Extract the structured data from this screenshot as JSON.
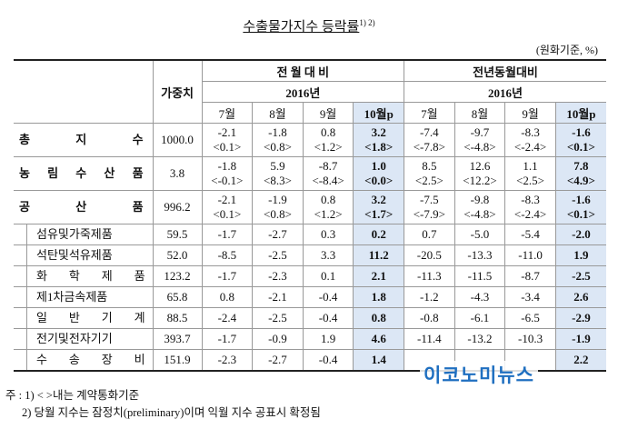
{
  "title": "수출물가지수 등락률",
  "title_note": "1) 2)",
  "unit": "(원화기준, %)",
  "header": {
    "weight": "가중치",
    "groups": [
      "전 월 대 비",
      "전년동월대비"
    ],
    "years": [
      "2016년",
      "2016년"
    ],
    "months": [
      "7월",
      "8월",
      "9월",
      "10월p",
      "7월",
      "8월",
      "9월",
      "10월p"
    ]
  },
  "rows": [
    {
      "label": "총 지 수",
      "weight": "1000.0",
      "values": [
        "-2.1",
        "-1.8",
        "0.8",
        "3.2",
        "-7.4",
        "-9.7",
        "-8.3",
        "-1.6"
      ],
      "contract": [
        "<0.1>",
        "<0.8>",
        "<1.2>",
        "<1.8>",
        "<-7.8>",
        "<-4.8>",
        "<-2.4>",
        "<0.1>"
      ]
    },
    {
      "label": "농 림 수 산 품",
      "weight": "3.8",
      "values": [
        "-1.8",
        "5.9",
        "-8.7",
        "1.0",
        "8.5",
        "12.6",
        "1.1",
        "7.8"
      ],
      "contract": [
        "<-0.1>",
        "<8.3>",
        "<-8.4>",
        "<0.0>",
        "<2.5>",
        "<12.2>",
        "<2.5>",
        "<4.9>"
      ]
    },
    {
      "label": "공 산 품",
      "weight": "996.2",
      "values": [
        "-2.1",
        "-1.9",
        "0.8",
        "3.2",
        "-7.5",
        "-9.8",
        "-8.3",
        "-1.6"
      ],
      "contract": [
        "<0.1>",
        "<0.8>",
        "<1.2>",
        "<1.7>",
        "<-7.9>",
        "<-4.8>",
        "<-2.4>",
        "<0.1>"
      ]
    },
    {
      "label": "섬유및가죽제품",
      "weight": "59.5",
      "values": [
        "-1.7",
        "-2.7",
        "0.3",
        "0.2",
        "0.7",
        "-5.0",
        "-5.4",
        "-2.0"
      ]
    },
    {
      "label": "석탄및석유제품",
      "weight": "52.0",
      "values": [
        "-8.5",
        "-2.5",
        "3.3",
        "11.2",
        "-20.5",
        "-13.3",
        "-11.0",
        "1.9"
      ]
    },
    {
      "label": "화 학 제 품",
      "weight": "123.2",
      "values": [
        "-1.7",
        "-2.3",
        "0.1",
        "2.1",
        "-11.3",
        "-11.5",
        "-8.7",
        "-2.5"
      ]
    },
    {
      "label": "제1차금속제품",
      "weight": "65.8",
      "values": [
        "0.8",
        "-2.1",
        "-0.4",
        "1.8",
        "-1.2",
        "-4.3",
        "-3.4",
        "2.6"
      ]
    },
    {
      "label": "일 반 기 계",
      "weight": "88.5",
      "values": [
        "-2.4",
        "-2.5",
        "-0.4",
        "0.8",
        "-0.8",
        "-6.1",
        "-6.5",
        "-2.9"
      ]
    },
    {
      "label": "전기및전자기기",
      "weight": "393.7",
      "values": [
        "-1.7",
        "-0.9",
        "1.9",
        "4.6",
        "-11.4",
        "-13.2",
        "-10.3",
        "-1.9"
      ]
    },
    {
      "label": "수 송 장 비",
      "weight": "151.9",
      "values": [
        "-2.3",
        "-2.7",
        "-0.4",
        "1.4",
        null,
        null,
        null,
        "2.2"
      ]
    }
  ],
  "watermark": "이코노미뉴스",
  "notes": [
    "주 : 1) < >내는 계약통화기준",
    "2) 당월 지수는 잠정치(preliminary)이며 익월 지수 공표시 확정됨"
  ]
}
